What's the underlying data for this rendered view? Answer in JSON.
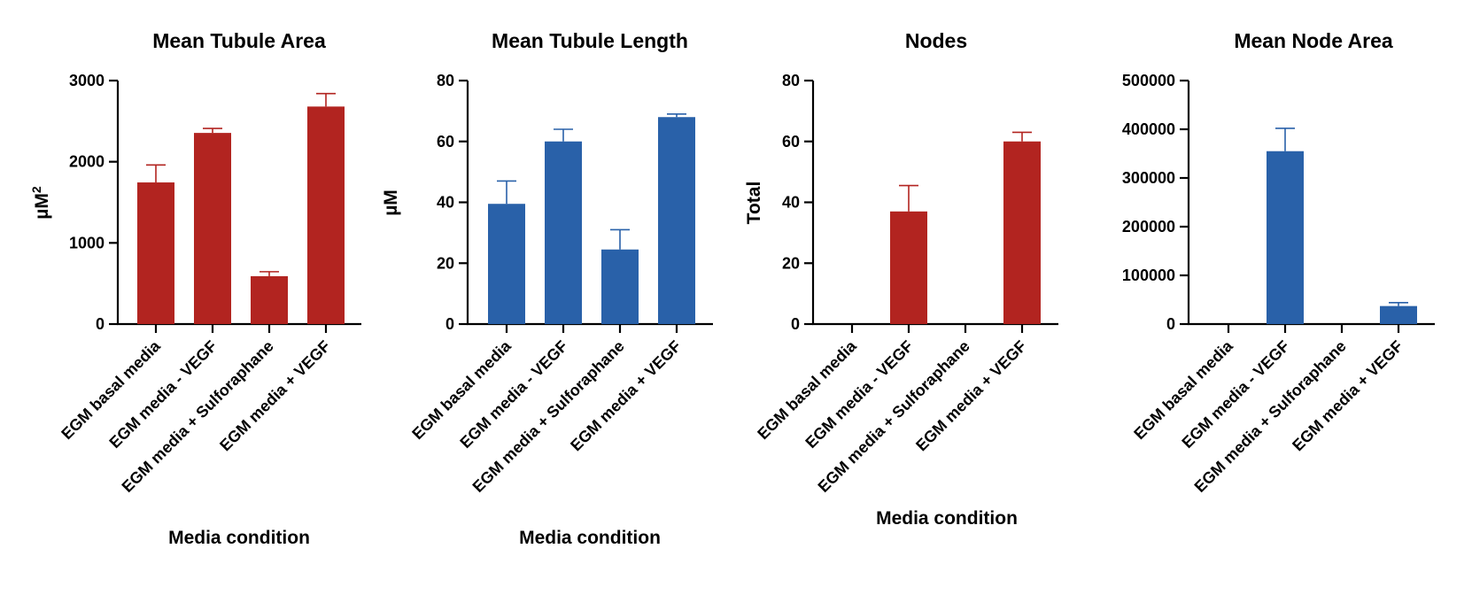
{
  "chart_data": [
    {
      "type": "bar",
      "title": "Mean Tubule Area",
      "ylabel": "µM",
      "ylabel_superscript": "2",
      "xlabel": "Media condition",
      "categories": [
        "EGM basal media",
        "EGM media - VEGF",
        "EGM media + Sulforaphane",
        "EGM media + VEGF"
      ],
      "values": [
        1745,
        2355,
        590,
        2680
      ],
      "error_upper": [
        1960,
        2410,
        645,
        2840
      ],
      "ylim": [
        0,
        3000
      ],
      "yticks": [
        0,
        1000,
        2000,
        3000
      ],
      "ytick_labels": [
        "0",
        "1000",
        "2000",
        "3000"
      ],
      "color": "#b22420"
    },
    {
      "type": "bar",
      "title": "Mean Tubule Length",
      "ylabel": "µM",
      "xlabel": "Media condition",
      "categories": [
        "EGM basal media",
        "EGM media - VEGF",
        "EGM media + Sulforaphane",
        "EGM media + VEGF"
      ],
      "values": [
        39.5,
        60,
        24.5,
        68
      ],
      "error_upper": [
        47,
        64,
        31,
        69
      ],
      "ylim": [
        0,
        80
      ],
      "yticks": [
        0,
        20,
        40,
        60,
        80
      ],
      "ytick_labels": [
        "0",
        "20",
        "40",
        "60",
        "80"
      ],
      "color": "#2961a9"
    },
    {
      "type": "bar",
      "title": "Nodes",
      "ylabel": "Total",
      "xlabel": "Media condition",
      "categories": [
        "EGM basal media",
        "EGM media - VEGF",
        "EGM media + Sulforaphane",
        "EGM media + VEGF"
      ],
      "values": [
        0,
        37,
        0,
        60
      ],
      "error_upper": [
        0,
        45.5,
        0,
        63
      ],
      "ylim": [
        0,
        80
      ],
      "yticks": [
        0,
        20,
        40,
        60,
        80
      ],
      "ytick_labels": [
        "0",
        "20",
        "40",
        "60",
        "80"
      ],
      "color": "#b22420"
    },
    {
      "type": "bar",
      "title": "Mean Node Area",
      "ylabel": "",
      "xlabel": "",
      "categories": [
        "EGM basal media",
        "EGM media - VEGF",
        "EGM media + Sulforaphane",
        "EGM media + VEGF"
      ],
      "values": [
        0,
        355000,
        0,
        37000
      ],
      "error_upper": [
        0,
        402000,
        0,
        44000
      ],
      "ylim": [
        0,
        500000
      ],
      "yticks": [
        0,
        100000,
        200000,
        300000,
        400000,
        500000
      ],
      "ytick_labels": [
        "0",
        "100000",
        "200000",
        "300000",
        "400000",
        "500000"
      ],
      "color": "#2961a9"
    }
  ]
}
